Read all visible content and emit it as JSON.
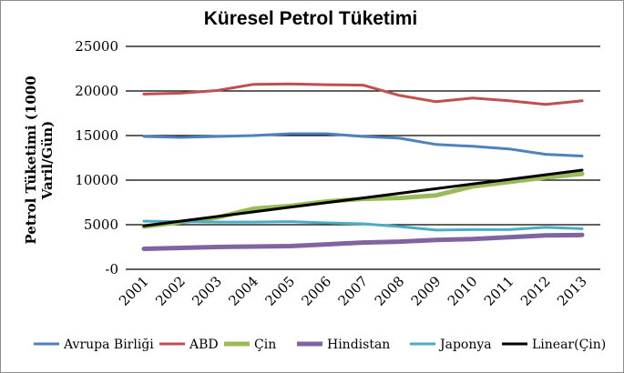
{
  "chart_data": {
    "type": "line",
    "title": "Küresel Petrol Tüketimi",
    "ylabel_lines": [
      "Petrol Tüketimi (1000",
      "Varil/Gün)"
    ],
    "xlabel": "",
    "x": [
      "2001",
      "2002",
      "2003",
      "2004",
      "2005",
      "2006",
      "2007",
      "2008",
      "2009",
      "2010",
      "2011",
      "2012",
      "2013"
    ],
    "ylim": [
      0,
      25000
    ],
    "yticks": [
      0,
      5000,
      10000,
      15000,
      20000,
      25000
    ],
    "ytick_labels": [
      "-0",
      "5000",
      "10000",
      "15000",
      "20000",
      "25000"
    ],
    "grid": true,
    "legend_position": "bottom",
    "series": [
      {
        "name": "Avrupa Birliği",
        "color": "#4f81bd",
        "width": 3,
        "values": [
          14900,
          14800,
          14900,
          15000,
          15200,
          15200,
          14900,
          14700,
          14000,
          13800,
          13500,
          12900,
          12700
        ]
      },
      {
        "name": "ABD",
        "color": "#c0504d",
        "width": 3,
        "values": [
          19650,
          19750,
          20050,
          20750,
          20800,
          20700,
          20650,
          19500,
          18800,
          19200,
          18900,
          18500,
          18900
        ]
      },
      {
        "name": "Çin",
        "color": "#9bbb59",
        "width": 5,
        "values": [
          4800,
          5300,
          5800,
          6800,
          7100,
          7600,
          7900,
          8000,
          8300,
          9300,
          9800,
          10300,
          10700
        ]
      },
      {
        "name": "Hindistan",
        "color": "#8064a2",
        "width": 5,
        "values": [
          2300,
          2400,
          2500,
          2550,
          2600,
          2800,
          3000,
          3100,
          3300,
          3400,
          3600,
          3800,
          3850
        ]
      },
      {
        "name": "Japonya",
        "color": "#4bacc6",
        "width": 3,
        "values": [
          5400,
          5350,
          5300,
          5300,
          5350,
          5200,
          5100,
          4800,
          4400,
          4450,
          4450,
          4700,
          4550
        ]
      },
      {
        "name": "Linear(Çin)",
        "color": "#000000",
        "width": 3,
        "values": [
          4880,
          5400,
          5920,
          6440,
          6960,
          7480,
          8000,
          8520,
          9040,
          9560,
          10080,
          10600,
          11120
        ]
      }
    ]
  }
}
